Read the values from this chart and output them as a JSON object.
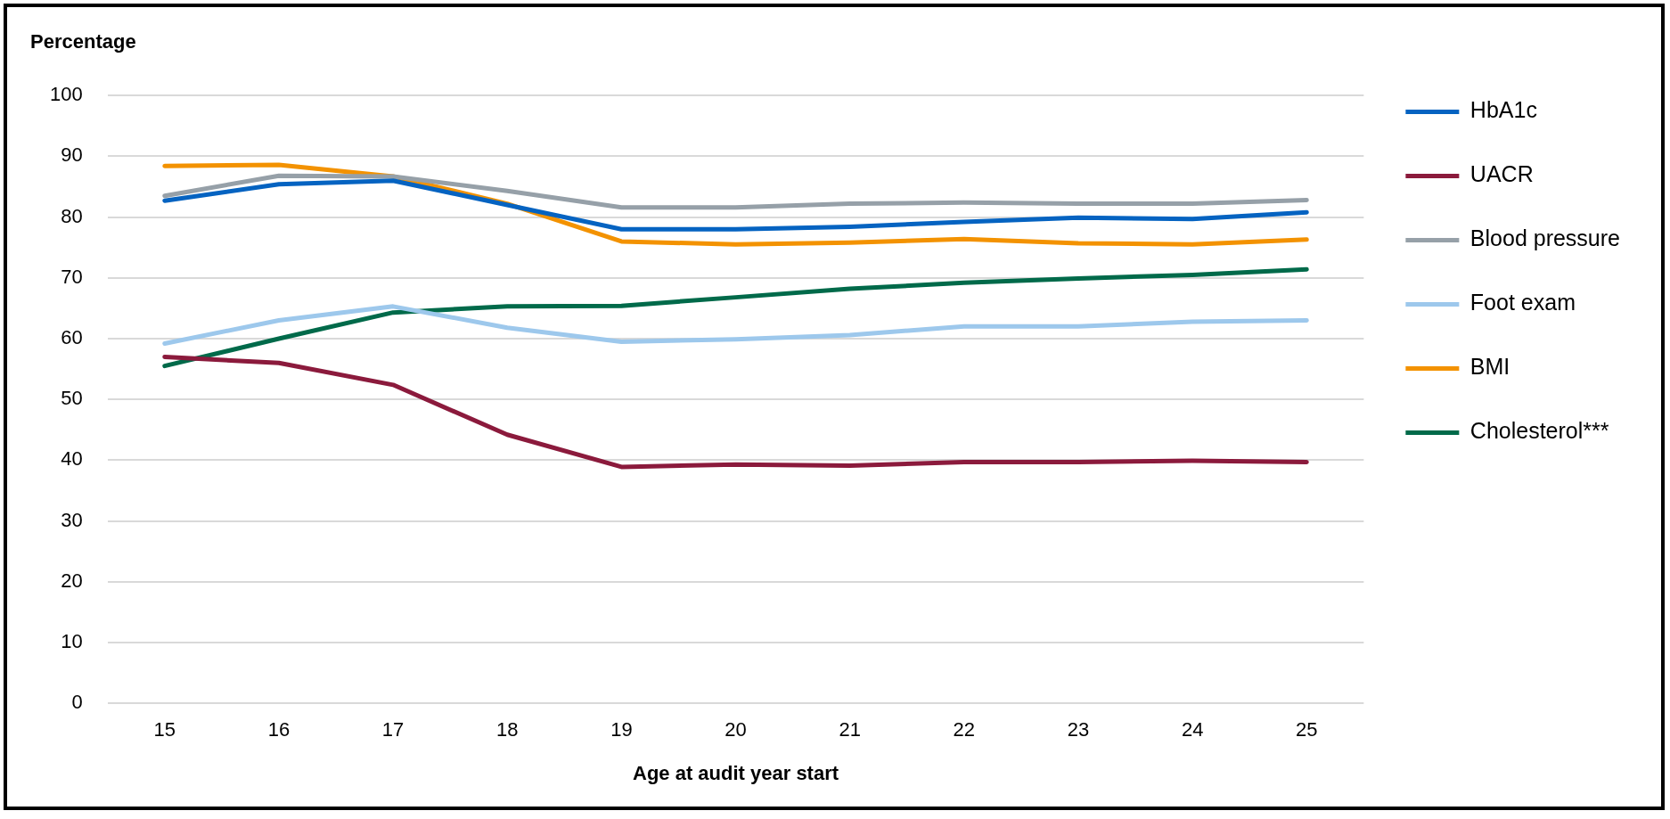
{
  "chart_data": {
    "type": "line",
    "ylabel": "Percentage",
    "xlabel": "Age at audit year start",
    "categories": [
      "15",
      "16",
      "17",
      "18",
      "19",
      "20",
      "21",
      "22",
      "23",
      "24",
      "25"
    ],
    "series": [
      {
        "name": "HbA1c",
        "color": "#0563c1",
        "values": [
          82.7,
          85.4,
          86,
          82,
          78,
          78,
          78.4,
          79.2,
          79.9,
          79.7,
          80.8
        ]
      },
      {
        "name": "UACR",
        "color": "#8b1a3c",
        "values": [
          57,
          56,
          52.4,
          44.2,
          38.9,
          39.3,
          39.1,
          39.7,
          39.7,
          39.9,
          39.7
        ]
      },
      {
        "name": "Blood pressure",
        "color": "#96a0a8",
        "values": [
          83.5,
          86.8,
          86.7,
          84.3,
          81.6,
          81.6,
          82.2,
          82.4,
          82.2,
          82.2,
          82.8
        ]
      },
      {
        "name": "Foot exam",
        "color": "#9dc8ec",
        "values": [
          59.2,
          63,
          65.3,
          61.8,
          59.5,
          59.9,
          60.6,
          62,
          62,
          62.8,
          63
        ]
      },
      {
        "name": "BMI",
        "color": "#f39200",
        "values": [
          88.4,
          88.6,
          86.7,
          82.2,
          76,
          75.5,
          75.8,
          76.4,
          75.7,
          75.5,
          76.3
        ]
      },
      {
        "name": "Cholesterol***",
        "color": "#006a4a",
        "values": [
          55.5,
          60,
          64.3,
          65.3,
          65.4,
          66.8,
          68.2,
          69.2,
          69.9,
          70.5,
          71.4
        ]
      }
    ],
    "ylim": [
      0,
      100
    ],
    "yticks": [
      0,
      10,
      20,
      30,
      40,
      50,
      60,
      70,
      80,
      90,
      100
    ],
    "grid": "y",
    "legend": "right",
    "marker": "none",
    "line_style": "solid"
  }
}
